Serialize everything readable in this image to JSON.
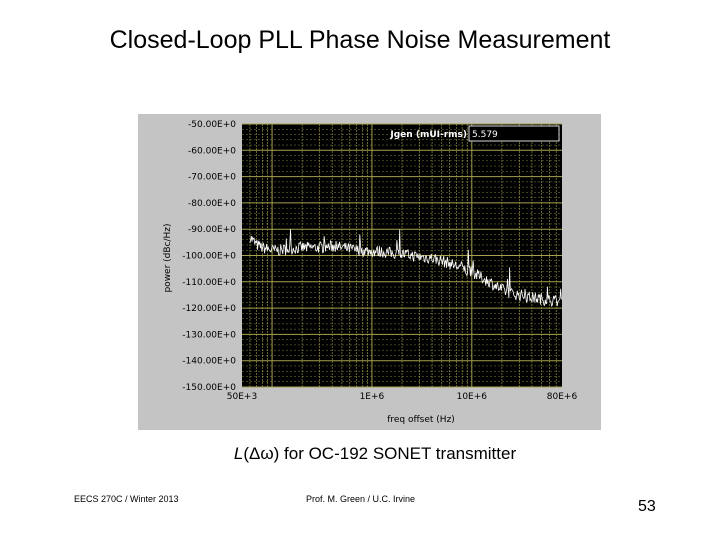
{
  "slide": {
    "title": "Closed-Loop PLL Phase Noise Measurement",
    "caption_prefix": "L",
    "caption_rest": "(Δω) for OC-192 SONET transmitter",
    "footer_left": "EECS 270C / Winter 2013",
    "footer_middle": "Prof. M. Green / U.C. Irvine",
    "page_number": "53"
  },
  "chart_data": {
    "type": "line",
    "title": "",
    "xlabel": "freq offset (Hz)",
    "ylabel": "power (dBc/Hz)",
    "xscale": "log",
    "xlim": [
      50000,
      80000000
    ],
    "ylim": [
      -150,
      -50
    ],
    "x_tick_values": [
      50000,
      1000000,
      10000000,
      80000000
    ],
    "x_tick_labels": [
      "50E+3",
      "1E+6",
      "10E+6",
      "80E+6"
    ],
    "y_tick_values": [
      -50,
      -60,
      -70,
      -80,
      -90,
      -100,
      -110,
      -120,
      -130,
      -140,
      -150
    ],
    "y_tick_labels": [
      "-50.00E+0",
      "-60.00E+0",
      "-70.00E+0",
      "-80.00E+0",
      "-90.00E+0",
      "-100.00E+0",
      "-110.00E+0",
      "-120.00E+0",
      "-130.00E+0",
      "-140.00E+0",
      "-150.00E+0"
    ],
    "grid": true,
    "colors": {
      "panel": "#c4c4c4",
      "plot_background": "#000000",
      "grid": "#a6a24e",
      "trace": "#ffffff"
    },
    "annotation": {
      "label": "Jgen (mUI-rms)",
      "value": "5.579"
    },
    "series": [
      {
        "x": [
          60000,
          70000,
          80000,
          100000,
          120000,
          150000,
          200000,
          250000,
          300000,
          400000,
          500000,
          600000,
          700000,
          800000,
          1000000,
          1200000,
          1500000,
          2000000,
          2500000,
          3000000,
          4000000,
          5000000,
          6000000,
          7000000,
          8000000,
          9000000,
          10000000,
          12000000,
          15000000,
          20000000,
          25000000,
          30000000,
          40000000,
          50000000,
          60000000,
          80000000
        ],
        "y": [
          -93,
          -96,
          -97,
          -98,
          -98,
          -97.5,
          -97,
          -97,
          -97,
          -96.5,
          -97,
          -97.5,
          -98,
          -98,
          -98.5,
          -98.5,
          -99,
          -99.5,
          -100,
          -100.5,
          -101,
          -102,
          -103,
          -104,
          -104.5,
          -106,
          -106.5,
          -108,
          -110,
          -113,
          -114.5,
          -115,
          -116,
          -116.5,
          -117,
          -117.5
        ]
      }
    ]
  }
}
